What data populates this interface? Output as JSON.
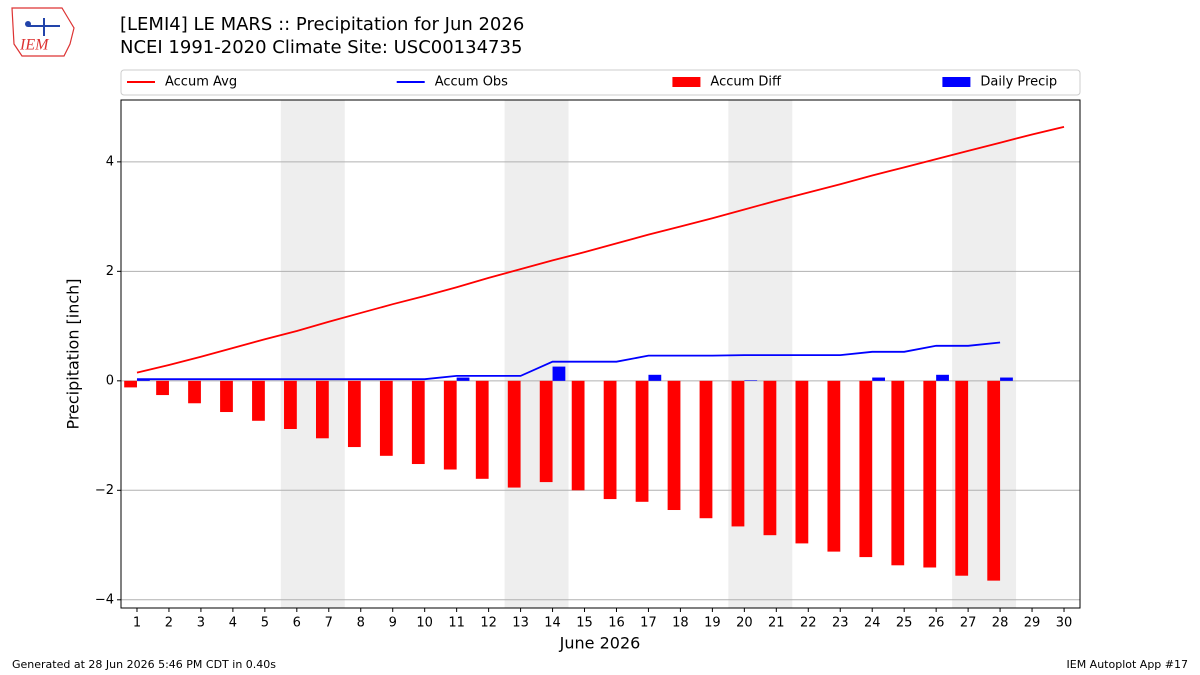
{
  "chart_data": {
    "type": "line",
    "title": "[LEMI4] LE MARS :: Precipitation for Jun 2026",
    "subtitle": "NCEI 1991-2020 Climate Site: USC00134735",
    "xlabel": "June 2026",
    "ylabel": "Precipitation [inch]",
    "footer_left": "Generated at 28 Jun 2026 5:46 PM CDT in 0.40s",
    "footer_right": "IEM Autoplot App #17",
    "logo_text": "IEM",
    "x": [
      1,
      2,
      3,
      4,
      5,
      6,
      7,
      8,
      9,
      10,
      11,
      12,
      13,
      14,
      15,
      16,
      17,
      18,
      19,
      20,
      21,
      22,
      23,
      24,
      25,
      26,
      27,
      28,
      29,
      30
    ],
    "xlim": [
      0.5,
      30.5
    ],
    "xticks": [
      1,
      2,
      3,
      4,
      5,
      6,
      7,
      8,
      9,
      10,
      11,
      12,
      13,
      14,
      15,
      16,
      17,
      18,
      19,
      20,
      21,
      22,
      23,
      24,
      25,
      26,
      27,
      28,
      29,
      30
    ],
    "ylim": [
      -4.15,
      5.13
    ],
    "yticks": [
      {
        "value": -4,
        "label": "−4"
      },
      {
        "value": -2,
        "label": "−2"
      },
      0,
      2,
      4
    ],
    "grid": true,
    "legend": "top",
    "shaded_ranges": [
      [
        5.5,
        7.5
      ],
      [
        12.5,
        14.5
      ],
      [
        19.5,
        21.5
      ],
      [
        26.5,
        28.5
      ]
    ],
    "shade_color": "#eeeeee",
    "series": [
      {
        "name": "Accum Avg",
        "type": "line",
        "color": "#ff0000",
        "values": [
          0.15,
          0.29,
          0.44,
          0.6,
          0.76,
          0.91,
          1.08,
          1.24,
          1.4,
          1.55,
          1.71,
          1.88,
          2.04,
          2.2,
          2.35,
          2.51,
          2.67,
          2.82,
          2.97,
          3.13,
          3.29,
          3.44,
          3.59,
          3.75,
          3.9,
          4.05,
          4.2,
          4.35,
          4.5,
          4.64
        ]
      },
      {
        "name": "Accum Obs",
        "type": "line",
        "color": "#0000ff",
        "values": [
          0.03,
          0.03,
          0.03,
          0.03,
          0.03,
          0.03,
          0.03,
          0.03,
          0.03,
          0.03,
          0.09,
          0.09,
          0.09,
          0.35,
          0.35,
          0.35,
          0.46,
          0.46,
          0.46,
          0.47,
          0.47,
          0.47,
          0.47,
          0.53,
          0.53,
          0.64,
          0.64,
          0.7,
          null,
          null
        ]
      },
      {
        "name": "Accum Diff",
        "type": "bar",
        "color": "#ff0000",
        "offset": -0.4,
        "width": 0.4,
        "values": [
          -0.12,
          -0.26,
          -0.41,
          -0.57,
          -0.73,
          -0.88,
          -1.05,
          -1.21,
          -1.37,
          -1.52,
          -1.62,
          -1.79,
          -1.95,
          -1.85,
          -2.0,
          -2.16,
          -2.21,
          -2.36,
          -2.51,
          -2.66,
          -2.82,
          -2.97,
          -3.12,
          -3.22,
          -3.37,
          -3.41,
          -3.56,
          -3.65,
          null,
          null
        ]
      },
      {
        "name": "Daily Precip",
        "type": "bar",
        "color": "#0000ff",
        "offset": 0,
        "width": 0.4,
        "values": [
          0.03,
          0,
          0,
          0,
          0,
          0,
          0,
          0,
          0,
          0,
          0.06,
          0,
          0,
          0.26,
          0,
          0,
          0.11,
          0,
          0,
          0.01,
          0,
          0,
          0,
          0.06,
          0,
          0.11,
          0,
          0.06,
          null,
          null
        ]
      }
    ]
  }
}
